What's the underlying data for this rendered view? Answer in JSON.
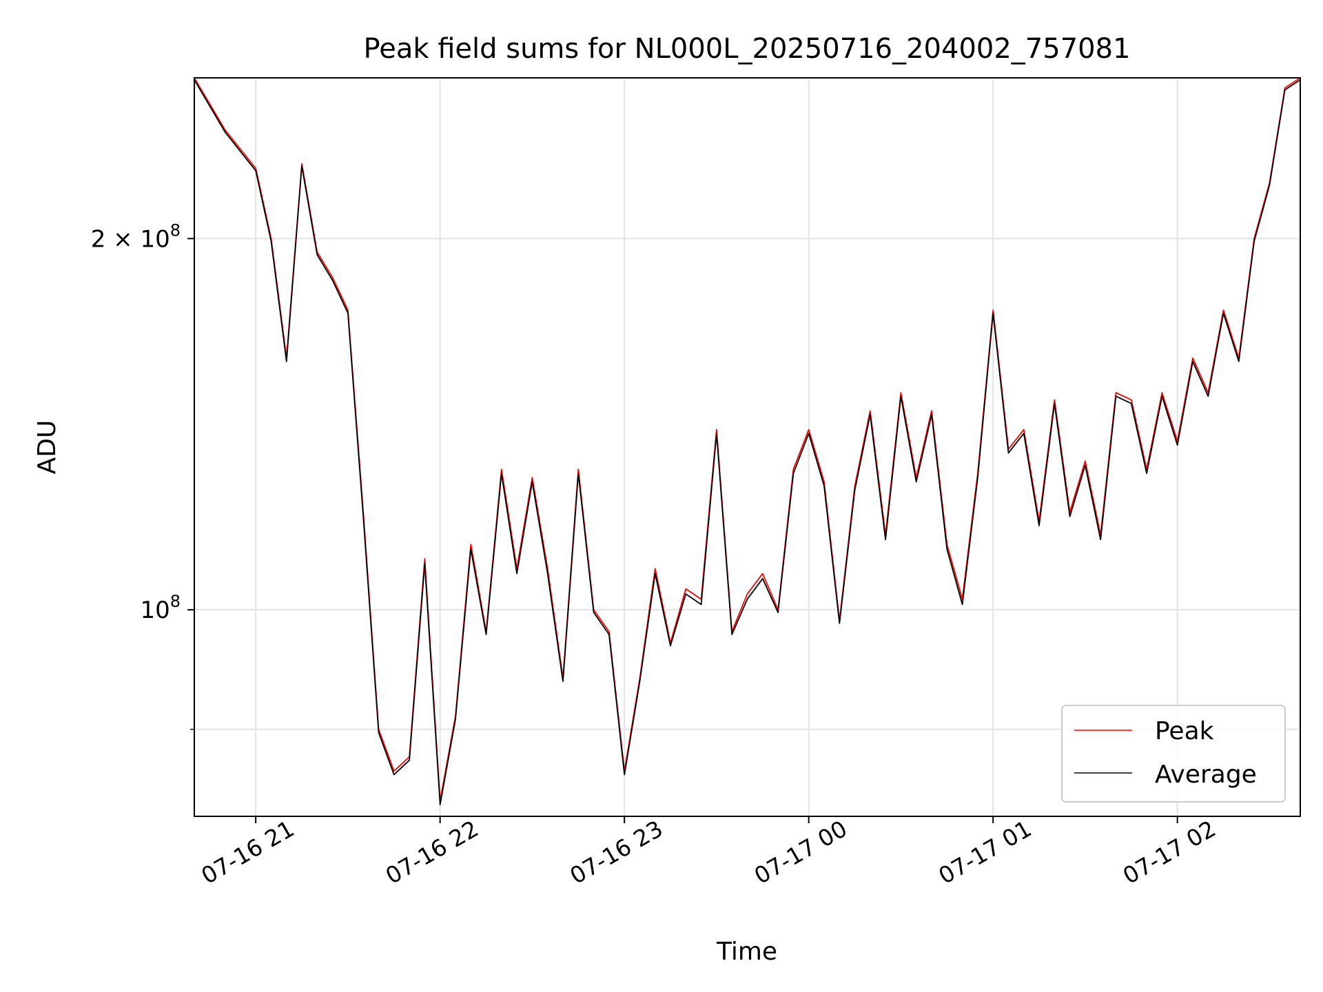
{
  "chart_data": {
    "type": "line",
    "title": "Peak field sums for NL000L_20250716_204002_757081",
    "xlabel": "Time",
    "ylabel": "ADU",
    "x_start": "2025-07-16 20:40",
    "x_end": "2025-07-17 02:40",
    "xlim": [
      "2025-07-16 20:40",
      "2025-07-17 02:40"
    ],
    "ylim": [
      68000000,
      270000000
    ],
    "y_scale": "log",
    "x_ticks": [
      {
        "x": "2025-07-16 21:00",
        "label": "07-16 21"
      },
      {
        "x": "2025-07-16 22:00",
        "label": "07-16 22"
      },
      {
        "x": "2025-07-16 23:00",
        "label": "07-16 23"
      },
      {
        "x": "2025-07-17 00:00",
        "label": "07-17 00"
      },
      {
        "x": "2025-07-17 01:00",
        "label": "07-17 01"
      },
      {
        "x": "2025-07-17 02:00",
        "label": "07-17 02"
      }
    ],
    "y_ticks": [
      {
        "value": 100000000,
        "base": "10",
        "exp": "8",
        "coef": ""
      },
      {
        "value": 200000000,
        "base": "10",
        "exp": "8",
        "coef": "2 × "
      }
    ],
    "y_minor_ticks": [
      80000000
    ],
    "grid": true,
    "legend_position": "lower right",
    "series": [
      {
        "name": "Peak",
        "color": "#ff0000",
        "x": [
          "2025-07-16 20:40",
          "2025-07-16 20:50",
          "2025-07-16 21:00",
          "2025-07-16 21:05",
          "2025-07-16 21:10",
          "2025-07-16 21:15",
          "2025-07-16 21:20",
          "2025-07-16 21:25",
          "2025-07-16 21:30",
          "2025-07-16 21:35",
          "2025-07-16 21:40",
          "2025-07-16 21:45",
          "2025-07-16 21:50",
          "2025-07-16 21:55",
          "2025-07-16 22:00",
          "2025-07-16 22:05",
          "2025-07-16 22:10",
          "2025-07-16 22:15",
          "2025-07-16 22:20",
          "2025-07-16 22:25",
          "2025-07-16 22:30",
          "2025-07-16 22:35",
          "2025-07-16 22:40",
          "2025-07-16 22:45",
          "2025-07-16 22:50",
          "2025-07-16 22:55",
          "2025-07-16 23:00",
          "2025-07-16 23:05",
          "2025-07-16 23:10",
          "2025-07-16 23:15",
          "2025-07-16 23:20",
          "2025-07-16 23:25",
          "2025-07-16 23:30",
          "2025-07-16 23:35",
          "2025-07-16 23:40",
          "2025-07-16 23:45",
          "2025-07-16 23:50",
          "2025-07-16 23:55",
          "2025-07-17 00:00",
          "2025-07-17 00:05",
          "2025-07-17 00:10",
          "2025-07-17 00:15",
          "2025-07-17 00:20",
          "2025-07-17 00:25",
          "2025-07-17 00:30",
          "2025-07-17 00:35",
          "2025-07-17 00:40",
          "2025-07-17 00:45",
          "2025-07-17 00:50",
          "2025-07-17 00:55",
          "2025-07-17 01:00",
          "2025-07-17 01:05",
          "2025-07-17 01:10",
          "2025-07-17 01:15",
          "2025-07-17 01:20",
          "2025-07-17 01:25",
          "2025-07-17 01:30",
          "2025-07-17 01:35",
          "2025-07-17 01:40",
          "2025-07-17 01:45",
          "2025-07-17 01:50",
          "2025-07-17 01:55",
          "2025-07-17 02:00",
          "2025-07-17 02:05",
          "2025-07-17 02:10",
          "2025-07-17 02:15",
          "2025-07-17 02:20",
          "2025-07-17 02:25",
          "2025-07-17 02:30",
          "2025-07-17 02:35",
          "2025-07-17 02:40"
        ],
        "y": [
          270000000,
          245000000,
          228000000,
          200000000,
          160000000,
          230000000,
          195000000,
          186000000,
          175000000,
          120000000,
          80000000,
          74000000,
          76000000,
          110000000,
          70000000,
          82000000,
          113000000,
          96000000,
          130000000,
          108000000,
          128000000,
          108000000,
          88000000,
          130000000,
          100000000,
          96000000,
          74000000,
          88000000,
          108000000,
          94000000,
          104000000,
          102000000,
          140000000,
          96000000,
          103000000,
          107000000,
          100000000,
          130000000,
          140000000,
          127000000,
          98000000,
          126000000,
          145000000,
          115000000,
          150000000,
          128000000,
          145000000,
          113000000,
          102000000,
          129000000,
          175000000,
          135000000,
          140000000,
          118000000,
          148000000,
          120000000,
          132000000,
          115000000,
          150000000,
          148000000,
          130000000,
          150000000,
          137000000,
          160000000,
          150000000,
          175000000,
          160000000,
          200000000,
          222000000,
          265000000,
          270000000
        ]
      },
      {
        "name": "Average",
        "color": "#000000",
        "x": [
          "2025-07-16 20:40",
          "2025-07-16 20:50",
          "2025-07-16 21:00",
          "2025-07-16 21:05",
          "2025-07-16 21:10",
          "2025-07-16 21:15",
          "2025-07-16 21:20",
          "2025-07-16 21:25",
          "2025-07-16 21:30",
          "2025-07-16 21:35",
          "2025-07-16 21:40",
          "2025-07-16 21:45",
          "2025-07-16 21:50",
          "2025-07-16 21:55",
          "2025-07-16 22:00",
          "2025-07-16 22:05",
          "2025-07-16 22:10",
          "2025-07-16 22:15",
          "2025-07-16 22:20",
          "2025-07-16 22:25",
          "2025-07-16 22:30",
          "2025-07-16 22:35",
          "2025-07-16 22:40",
          "2025-07-16 22:45",
          "2025-07-16 22:50",
          "2025-07-16 22:55",
          "2025-07-16 23:00",
          "2025-07-16 23:05",
          "2025-07-16 23:10",
          "2025-07-16 23:15",
          "2025-07-16 23:20",
          "2025-07-16 23:25",
          "2025-07-16 23:30",
          "2025-07-16 23:35",
          "2025-07-16 23:40",
          "2025-07-16 23:45",
          "2025-07-16 23:50",
          "2025-07-16 23:55",
          "2025-07-17 00:00",
          "2025-07-17 00:05",
          "2025-07-17 00:10",
          "2025-07-17 00:15",
          "2025-07-17 00:20",
          "2025-07-17 00:25",
          "2025-07-17 00:30",
          "2025-07-17 00:35",
          "2025-07-17 00:40",
          "2025-07-17 00:45",
          "2025-07-17 00:50",
          "2025-07-17 00:55",
          "2025-07-17 01:00",
          "2025-07-17 01:05",
          "2025-07-17 01:10",
          "2025-07-17 01:15",
          "2025-07-17 01:20",
          "2025-07-17 01:25",
          "2025-07-17 01:30",
          "2025-07-17 01:35",
          "2025-07-17 01:40",
          "2025-07-17 01:45",
          "2025-07-17 01:50",
          "2025-07-17 01:55",
          "2025-07-17 02:00",
          "2025-07-17 02:05",
          "2025-07-17 02:10",
          "2025-07-17 02:15",
          "2025-07-17 02:20",
          "2025-07-17 02:25",
          "2025-07-17 02:30",
          "2025-07-17 02:35",
          "2025-07-17 02:40"
        ],
        "y": [
          269000000,
          244000000,
          227000000,
          199000000,
          159000000,
          229000000,
          194000000,
          185000000,
          174000000,
          119000000,
          79500000,
          73500000,
          75500000,
          109000000,
          69500000,
          81500000,
          112000000,
          95500000,
          129000000,
          107000000,
          127000000,
          107000000,
          87500000,
          129000000,
          99500000,
          95500000,
          73500000,
          87500000,
          107000000,
          93500000,
          103000000,
          101000000,
          139000000,
          95500000,
          102000000,
          106000000,
          99500000,
          129000000,
          139000000,
          126000000,
          97500000,
          125000000,
          144000000,
          114000000,
          149000000,
          127000000,
          144000000,
          112000000,
          101000000,
          128000000,
          174000000,
          134000000,
          139000000,
          117000000,
          147000000,
          119000000,
          131000000,
          114000000,
          149000000,
          147000000,
          129000000,
          149000000,
          136000000,
          159000000,
          149000000,
          174000000,
          159000000,
          199000000,
          221000000,
          264000000,
          269000000
        ]
      }
    ]
  }
}
